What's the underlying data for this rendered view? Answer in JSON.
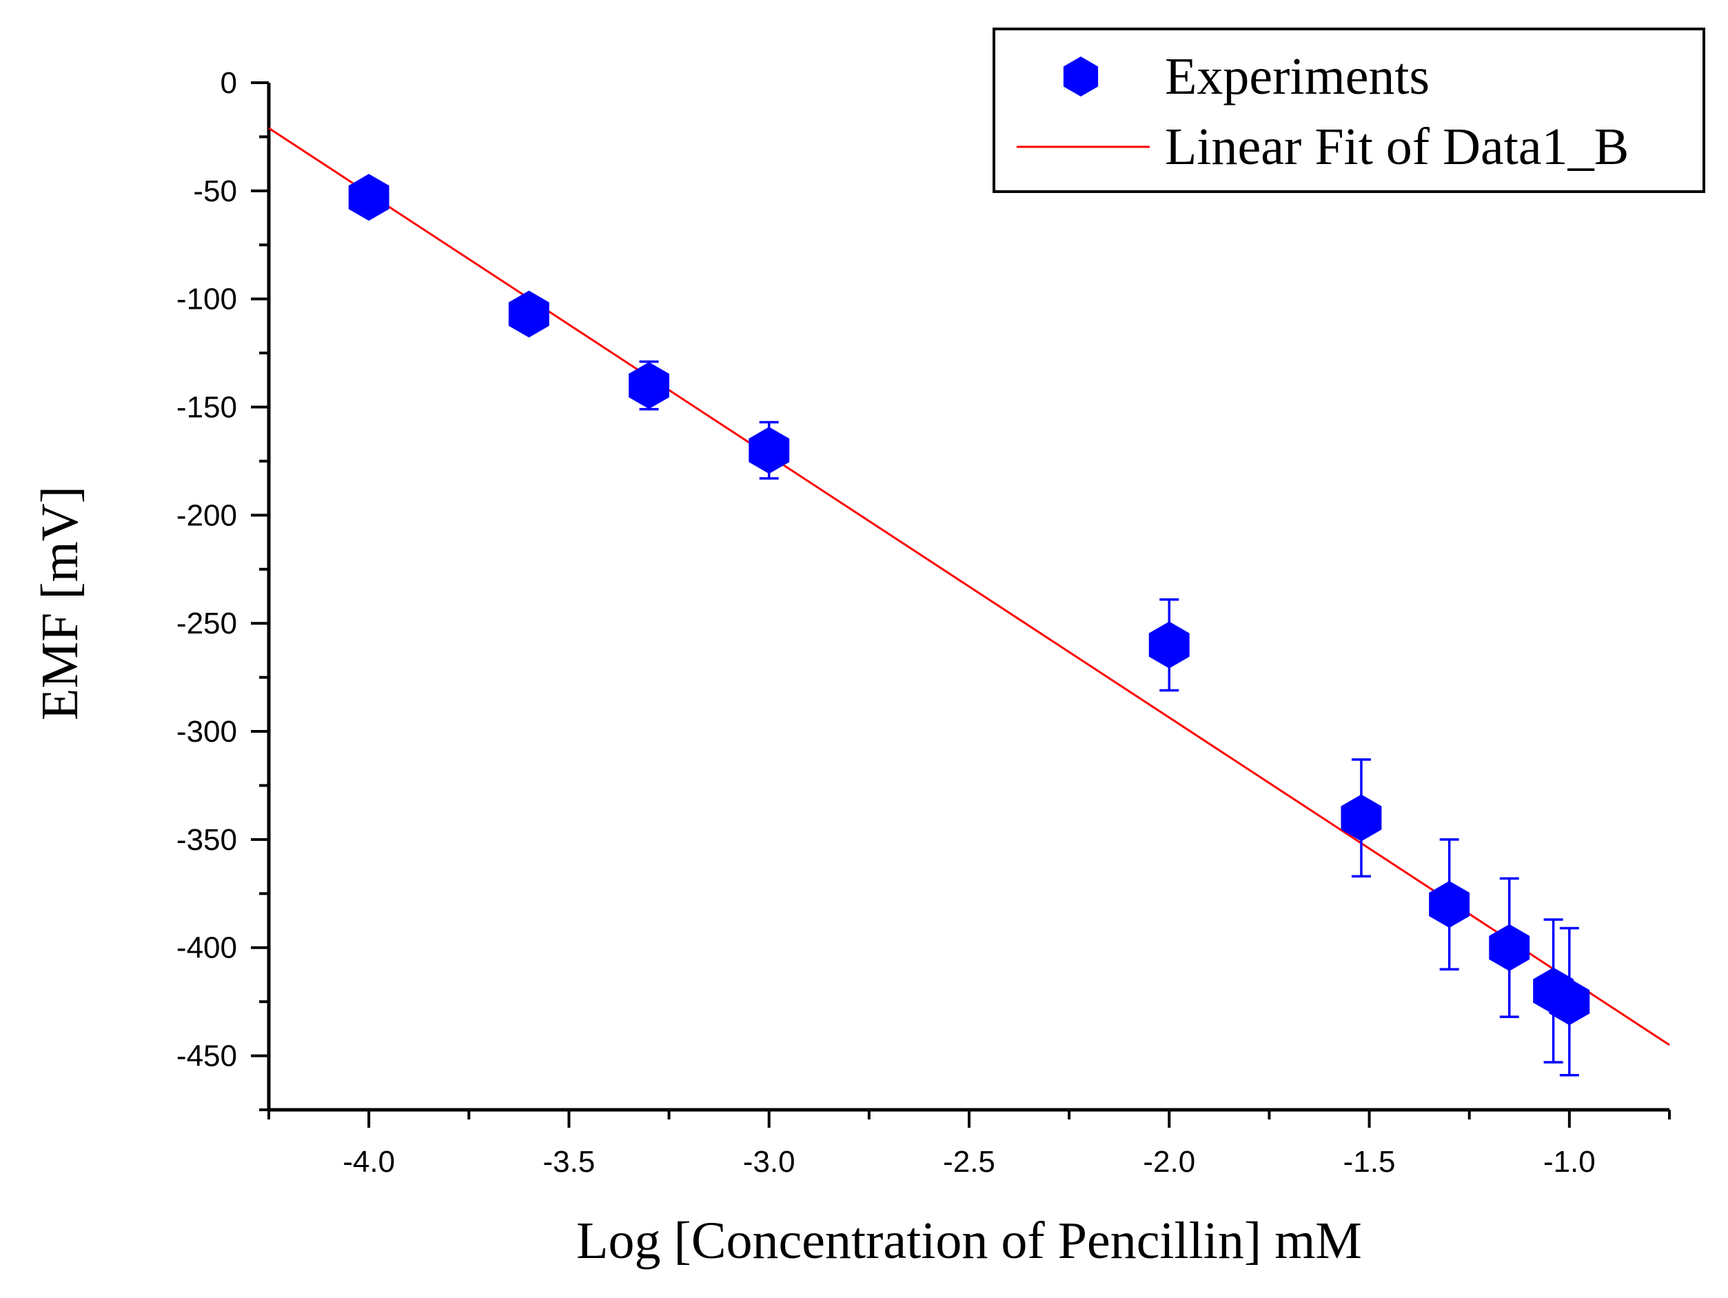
{
  "chart_data": {
    "type": "scatter",
    "xlabel": "Log [Concentration of Pencillin] mM",
    "ylabel": "EMF [mV]",
    "xlim": [
      -4.25,
      -0.75
    ],
    "ylim": [
      -475,
      0
    ],
    "x_ticks": [
      {
        "value": -4.0,
        "label": "-4.0"
      },
      {
        "value": -3.5,
        "label": "-3.5"
      },
      {
        "value": -3.0,
        "label": "-3.0"
      },
      {
        "value": -2.5,
        "label": "-2.5"
      },
      {
        "value": -2.0,
        "label": "-2.0"
      },
      {
        "value": -1.5,
        "label": "-1.5"
      },
      {
        "value": -1.0,
        "label": "-1.0"
      }
    ],
    "y_ticks": [
      {
        "value": 0,
        "label": "0"
      },
      {
        "value": -50,
        "label": "-50"
      },
      {
        "value": -100,
        "label": "-100"
      },
      {
        "value": -150,
        "label": "-150"
      },
      {
        "value": -200,
        "label": "-200"
      },
      {
        "value": -250,
        "label": "-250"
      },
      {
        "value": -300,
        "label": "-300"
      },
      {
        "value": -350,
        "label": "-350"
      },
      {
        "value": -400,
        "label": "-400"
      },
      {
        "value": -450,
        "label": "-450"
      }
    ],
    "x_minor_step": 0.25,
    "y_minor_step": 25,
    "grid": false,
    "legend_position": "top-right",
    "series": [
      {
        "name": "Experiments",
        "kind": "scatter",
        "marker": "hexagon",
        "color": "#0000ff",
        "points": [
          {
            "x": -4.0,
            "y": -53,
            "err": 0
          },
          {
            "x": -3.6,
            "y": -107,
            "err": 0
          },
          {
            "x": -3.3,
            "y": -140,
            "err": 11
          },
          {
            "x": -3.0,
            "y": -170,
            "err": 13
          },
          {
            "x": -2.0,
            "y": -260,
            "err": 21
          },
          {
            "x": -1.52,
            "y": -340,
            "err": 27
          },
          {
            "x": -1.3,
            "y": -380,
            "err": 30
          },
          {
            "x": -1.15,
            "y": -400,
            "err": 32
          },
          {
            "x": -1.04,
            "y": -420,
            "err": 33
          },
          {
            "x": -1.0,
            "y": -425,
            "err": 34
          }
        ]
      },
      {
        "name": "Linear Fit of Data1_B",
        "kind": "line",
        "color": "#ff0000",
        "points": [
          {
            "x": -4.25,
            "y": -21
          },
          {
            "x": -0.75,
            "y": -445
          }
        ]
      }
    ]
  }
}
